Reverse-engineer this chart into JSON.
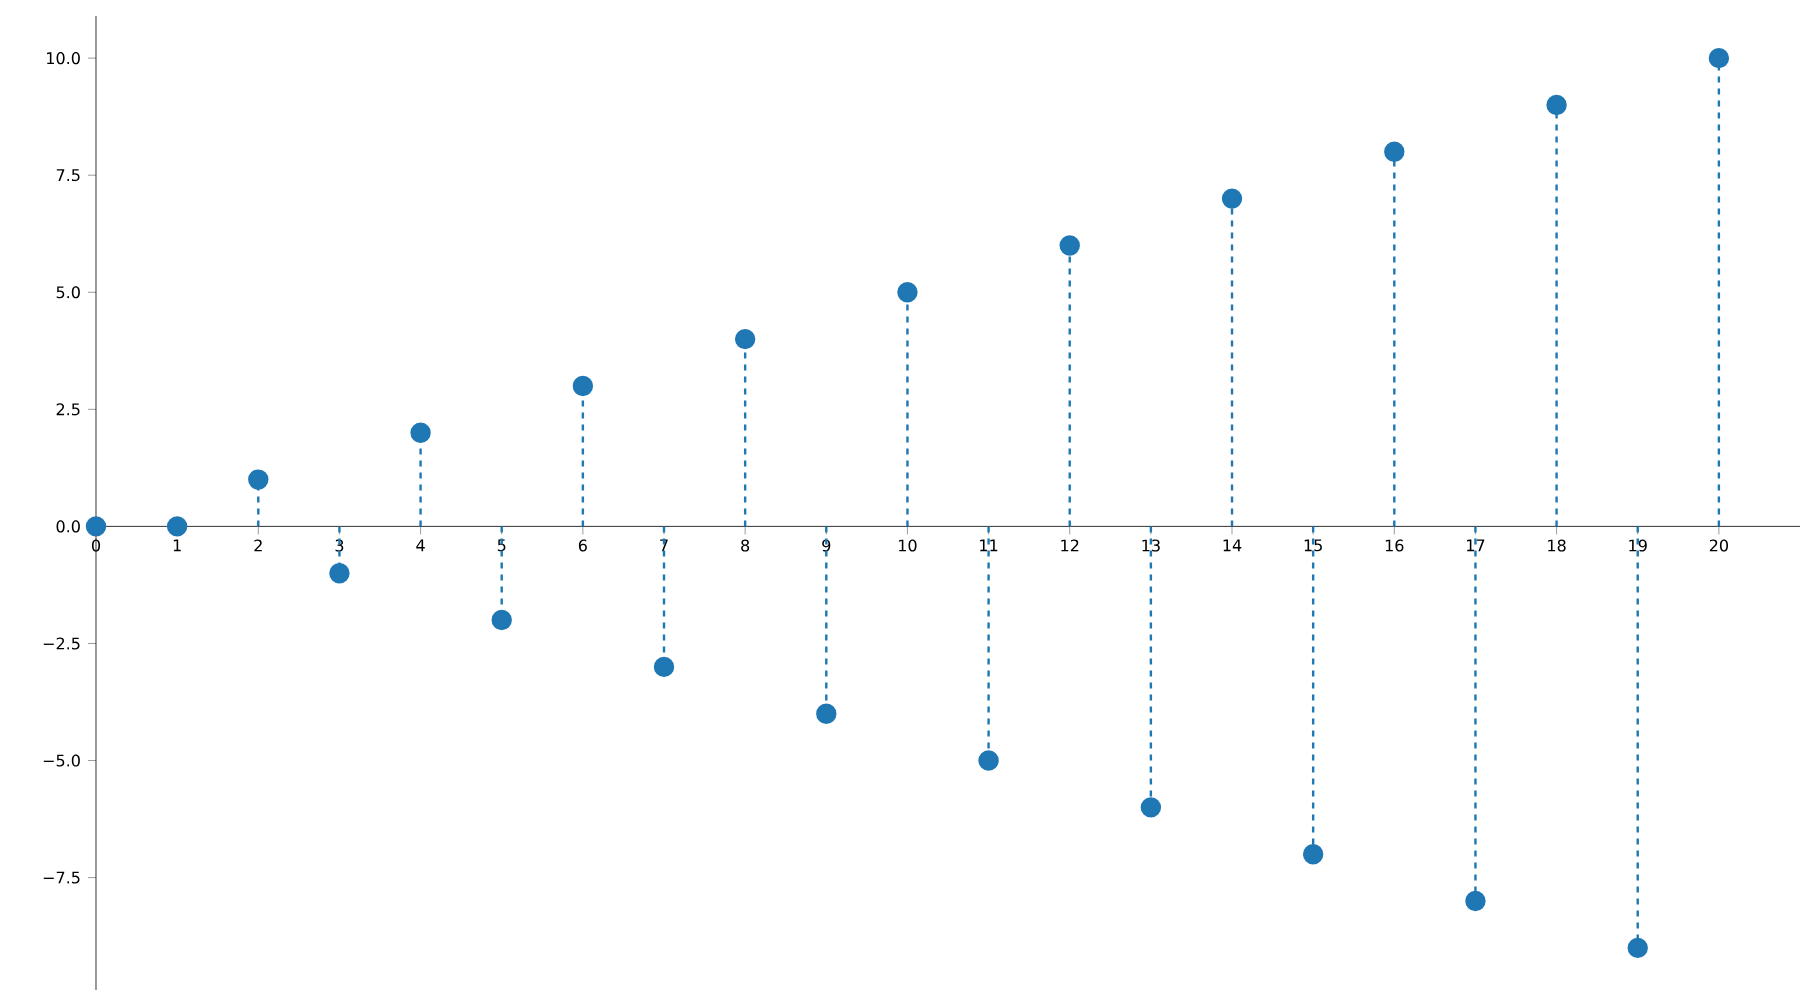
{
  "chart_data": {
    "type": "lollipop",
    "x": [
      0,
      1,
      2,
      3,
      4,
      5,
      6,
      7,
      8,
      9,
      10,
      11,
      12,
      13,
      14,
      15,
      16,
      17,
      18,
      19,
      20
    ],
    "values": [
      0,
      0,
      1,
      -1,
      2,
      -2,
      3,
      -3,
      4,
      -4,
      5,
      -5,
      6,
      -6,
      7,
      -7,
      8,
      -8,
      9,
      -9,
      10
    ],
    "color": "#1f77b4",
    "marker": "circle",
    "line_style": "dashed",
    "xlim": [
      0,
      21
    ],
    "ylim": [
      -9.9,
      10.9
    ],
    "xticks": [
      0,
      1,
      2,
      3,
      4,
      5,
      6,
      7,
      8,
      9,
      10,
      11,
      12,
      13,
      14,
      15,
      16,
      17,
      18,
      19,
      20
    ],
    "yticks": [
      {
        "value": -7.5,
        "label": "−7.5"
      },
      {
        "value": -5,
        "label": "−5.0"
      },
      {
        "value": -2.5,
        "label": "−2.5"
      },
      {
        "value": 0,
        "label": "0.0"
      },
      {
        "value": 2.5,
        "label": "2.5"
      },
      {
        "value": 5,
        "label": "5.0"
      },
      {
        "value": 7.5,
        "label": "7.5"
      },
      {
        "value": 10,
        "label": "10.0"
      }
    ]
  }
}
